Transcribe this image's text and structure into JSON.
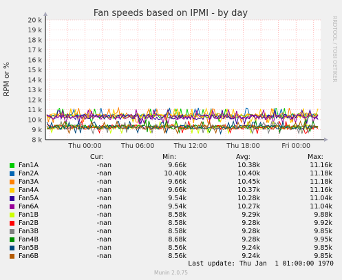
{
  "chart_data": {
    "type": "line",
    "title": "Fan speeds based on IPMI - by day",
    "ylabel": "RPM or %",
    "side_label": "RRDTOOL / TOBI OETIKER",
    "ylim": [
      8000,
      20000
    ],
    "yticks": [
      {
        "v": 8000,
        "label": "8 k"
      },
      {
        "v": 9000,
        "label": "9 k"
      },
      {
        "v": 10000,
        "label": "10 k"
      },
      {
        "v": 11000,
        "label": "11 k"
      },
      {
        "v": 12000,
        "label": "12 k"
      },
      {
        "v": 13000,
        "label": "13 k"
      },
      {
        "v": 14000,
        "label": "14 k"
      },
      {
        "v": 15000,
        "label": "15 k"
      },
      {
        "v": 16000,
        "label": "16 k"
      },
      {
        "v": 17000,
        "label": "17 k"
      },
      {
        "v": 18000,
        "label": "18 k"
      },
      {
        "v": 19000,
        "label": "19 k"
      },
      {
        "v": 20000,
        "label": "20 k"
      }
    ],
    "xticks": [
      {
        "h": 2,
        "label": "Thu 00:00"
      },
      {
        "h": 8,
        "label": "Thu 06:00"
      },
      {
        "h": 14,
        "label": "Thu 12:00"
      },
      {
        "h": 20,
        "label": "Thu 18:00"
      },
      {
        "h": 26,
        "label": "Fri 00:00"
      }
    ],
    "series": [
      {
        "name": "Fan1A",
        "color": "#00cc00",
        "min": 9660,
        "avg": 10380,
        "max": 11160,
        "group": "A"
      },
      {
        "name": "Fan2A",
        "color": "#0066b3",
        "min": 10400,
        "avg": 10400,
        "max": 11180,
        "group": "A"
      },
      {
        "name": "Fan3A",
        "color": "#ff8000",
        "min": 9660,
        "avg": 10450,
        "max": 11180,
        "group": "A"
      },
      {
        "name": "Fan4A",
        "color": "#ffcc00",
        "min": 9660,
        "avg": 10370,
        "max": 11160,
        "group": "A"
      },
      {
        "name": "Fan5A",
        "color": "#330099",
        "min": 9540,
        "avg": 10280,
        "max": 11040,
        "group": "A"
      },
      {
        "name": "Fan6A",
        "color": "#990099",
        "min": 9540,
        "avg": 10270,
        "max": 11040,
        "group": "A"
      },
      {
        "name": "Fan1B",
        "color": "#ccff00",
        "min": 8580,
        "avg": 9290,
        "max": 9880,
        "group": "B"
      },
      {
        "name": "Fan2B",
        "color": "#ff0000",
        "min": 8580,
        "avg": 9280,
        "max": 9920,
        "group": "B"
      },
      {
        "name": "Fan3B",
        "color": "#808080",
        "min": 8580,
        "avg": 9280,
        "max": 9850,
        "group": "B"
      },
      {
        "name": "Fan4B",
        "color": "#008f00",
        "min": 8680,
        "avg": 9280,
        "max": 9950,
        "group": "B"
      },
      {
        "name": "Fan5B",
        "color": "#00487d",
        "min": 8560,
        "avg": 9240,
        "max": 9850,
        "group": "B"
      },
      {
        "name": "Fan6B",
        "color": "#b35a00",
        "min": 8560,
        "avg": 9240,
        "max": 9850,
        "group": "B"
      }
    ]
  },
  "legend": {
    "headers": {
      "cur": "Cur:",
      "min": "Min:",
      "avg": "Avg:",
      "max": "Max:"
    },
    "rows": [
      {
        "name": "Fan1A",
        "cur": "-nan",
        "min": "9.66k",
        "avg": "10.38k",
        "max": "11.16k"
      },
      {
        "name": "Fan2A",
        "cur": "-nan",
        "min": "10.40k",
        "avg": "10.40k",
        "max": "11.18k"
      },
      {
        "name": "Fan3A",
        "cur": "-nan",
        "min": "9.66k",
        "avg": "10.45k",
        "max": "11.18k"
      },
      {
        "name": "Fan4A",
        "cur": "-nan",
        "min": "9.66k",
        "avg": "10.37k",
        "max": "11.16k"
      },
      {
        "name": "Fan5A",
        "cur": "-nan",
        "min": "9.54k",
        "avg": "10.28k",
        "max": "11.04k"
      },
      {
        "name": "Fan6A",
        "cur": "-nan",
        "min": "9.54k",
        "avg": "10.27k",
        "max": "11.04k"
      },
      {
        "name": "Fan1B",
        "cur": "-nan",
        "min": "8.58k",
        "avg": "9.29k",
        "max": "9.88k"
      },
      {
        "name": "Fan2B",
        "cur": "-nan",
        "min": "8.58k",
        "avg": "9.28k",
        "max": "9.92k"
      },
      {
        "name": "Fan3B",
        "cur": "-nan",
        "min": "8.58k",
        "avg": "9.28k",
        "max": "9.85k"
      },
      {
        "name": "Fan4B",
        "cur": "-nan",
        "min": "8.68k",
        "avg": "9.28k",
        "max": "9.95k"
      },
      {
        "name": "Fan5B",
        "cur": "-nan",
        "min": "8.56k",
        "avg": "9.24k",
        "max": "9.85k"
      },
      {
        "name": "Fan6B",
        "cur": "-nan",
        "min": "8.56k",
        "avg": "9.24k",
        "max": "9.85k"
      }
    ]
  },
  "footer": {
    "last_update": "Last update: Thu Jan  1 01:00:00 1970",
    "version": "Munin 2.0.75"
  }
}
